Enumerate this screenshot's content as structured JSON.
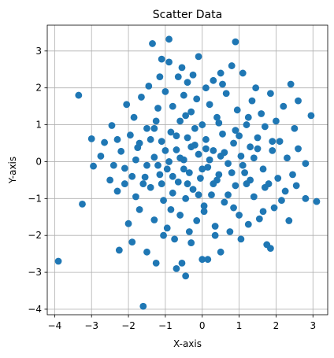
{
  "chart_data": {
    "type": "scatter",
    "title": "Scatter Data",
    "xlabel": "X-axis",
    "ylabel": "Y-axis",
    "xlim": [
      -4.2,
      3.4
    ],
    "ylim": [
      -4.15,
      3.7
    ],
    "xticks": [
      -4,
      -3,
      -2,
      -1,
      0,
      1,
      2,
      3
    ],
    "yticks": [
      -4,
      -3,
      -2,
      -1,
      0,
      1,
      2,
      3
    ],
    "grid": true,
    "marker_color": "#1f77b4",
    "points": [
      [
        -3.9,
        -2.7
      ],
      [
        -3.35,
        1.8
      ],
      [
        -3.25,
        -1.15
      ],
      [
        -3.0,
        0.62
      ],
      [
        -2.95,
        -0.12
      ],
      [
        -2.75,
        0.15
      ],
      [
        -2.65,
        0.52
      ],
      [
        -2.5,
        -0.5
      ],
      [
        -2.45,
        0.98
      ],
      [
        -2.3,
        -0.8
      ],
      [
        -2.25,
        -2.4
      ],
      [
        -2.2,
        0.28
      ],
      [
        -2.1,
        -0.18
      ],
      [
        -2.05,
        1.55
      ],
      [
        -2.0,
        -1.68
      ],
      [
        -1.95,
        0.72
      ],
      [
        -1.9,
        -2.18
      ],
      [
        -1.85,
        1.2
      ],
      [
        -1.8,
        -0.95
      ],
      [
        -1.75,
        0.38
      ],
      [
        -1.7,
        -1.3
      ],
      [
        -1.65,
        1.75
      ],
      [
        -1.6,
        -3.92
      ],
      [
        -1.55,
        -0.42
      ],
      [
        -1.5,
        0.9
      ],
      [
        -1.5,
        -2.45
      ],
      [
        -1.45,
        2.05
      ],
      [
        -1.4,
        -0.7
      ],
      [
        -1.35,
        3.2
      ],
      [
        -1.3,
        0.12
      ],
      [
        -1.3,
        -1.58
      ],
      [
        -1.25,
        -2.75
      ],
      [
        -1.2,
        1.45
      ],
      [
        -1.15,
        -0.35
      ],
      [
        -1.1,
        2.78
      ],
      [
        -1.1,
        0.55
      ],
      [
        -1.05,
        -1.05
      ],
      [
        -1.0,
        1.9
      ],
      [
        -0.95,
        -0.2
      ],
      [
        -0.95,
        -1.8
      ],
      [
        -0.9,
        3.32
      ],
      [
        -0.9,
        2.7
      ],
      [
        -0.85,
        0.8
      ],
      [
        -0.8,
        -0.85
      ],
      [
        -0.8,
        1.5
      ],
      [
        -0.75,
        -2.1
      ],
      [
        -0.7,
        0.32
      ],
      [
        -0.7,
        -2.9
      ],
      [
        -0.65,
        2.3
      ],
      [
        -0.65,
        -0.55
      ],
      [
        -0.6,
        1.1
      ],
      [
        -0.6,
        -1.45
      ],
      [
        -0.55,
        -2.75
      ],
      [
        -0.5,
        0.05
      ],
      [
        -0.5,
        1.8
      ],
      [
        -0.45,
        -3.1
      ],
      [
        -0.45,
        -1.0
      ],
      [
        -0.4,
        2.15
      ],
      [
        -0.4,
        0.65
      ],
      [
        -0.35,
        -0.3
      ],
      [
        -0.3,
        1.35
      ],
      [
        -0.3,
        -2.2
      ],
      [
        -0.25,
        2.35
      ],
      [
        -0.25,
        -0.75
      ],
      [
        -0.2,
        0.45
      ],
      [
        -0.15,
        -1.6
      ],
      [
        -0.15,
        1.7
      ],
      [
        -0.1,
        2.85
      ],
      [
        -0.1,
        0.2
      ],
      [
        -0.05,
        -0.45
      ],
      [
        0.0,
        -2.65
      ],
      [
        0.0,
        1.0
      ],
      [
        0.05,
        -1.2
      ],
      [
        0.1,
        2.0
      ],
      [
        0.1,
        0.6
      ],
      [
        0.15,
        -0.15
      ],
      [
        0.15,
        -2.65
      ],
      [
        0.2,
        1.55
      ],
      [
        0.25,
        -0.9
      ],
      [
        0.3,
        2.2
      ],
      [
        0.3,
        0.3
      ],
      [
        0.35,
        -1.75
      ],
      [
        0.4,
        1.2
      ],
      [
        0.45,
        -0.35
      ],
      [
        0.5,
        2.4
      ],
      [
        0.5,
        -2.45
      ],
      [
        0.55,
        0.75
      ],
      [
        0.6,
        -1.1
      ],
      [
        0.65,
        1.85
      ],
      [
        0.7,
        -0.05
      ],
      [
        0.75,
        -1.9
      ],
      [
        0.8,
        2.6
      ],
      [
        0.85,
        0.5
      ],
      [
        0.9,
        3.25
      ],
      [
        0.9,
        -0.65
      ],
      [
        0.95,
        1.4
      ],
      [
        1.0,
        -1.45
      ],
      [
        1.05,
        0.15
      ],
      [
        1.1,
        2.4
      ],
      [
        1.15,
        -0.3
      ],
      [
        1.2,
        1.0
      ],
      [
        1.25,
        -1.7
      ],
      [
        1.3,
        0.4
      ],
      [
        1.35,
        1.65
      ],
      [
        1.4,
        -0.95
      ],
      [
        1.5,
        0.65
      ],
      [
        1.55,
        -1.55
      ],
      [
        1.6,
        1.3
      ],
      [
        1.65,
        -0.2
      ],
      [
        1.7,
        0.95
      ],
      [
        1.75,
        -2.25
      ],
      [
        1.8,
        -0.6
      ],
      [
        1.85,
        1.85
      ],
      [
        1.85,
        -2.35
      ],
      [
        1.9,
        0.3
      ],
      [
        1.95,
        -1.25
      ],
      [
        2.0,
        1.1
      ],
      [
        2.05,
        -0.45
      ],
      [
        2.1,
        0.55
      ],
      [
        2.15,
        -1.05
      ],
      [
        2.2,
        1.5
      ],
      [
        2.25,
        -0.8
      ],
      [
        2.3,
        0.1
      ],
      [
        2.35,
        -1.6
      ],
      [
        2.4,
        2.1
      ],
      [
        2.45,
        -0.35
      ],
      [
        2.5,
        0.9
      ],
      [
        2.55,
        -0.65
      ],
      [
        2.6,
        1.65
      ],
      [
        2.8,
        -1.0
      ],
      [
        2.8,
        -0.05
      ],
      [
        2.95,
        1.25
      ],
      [
        3.1,
        -1.08
      ],
      [
        -1.8,
        0.05
      ],
      [
        -1.6,
        -0.6
      ],
      [
        -1.4,
        0.6
      ],
      [
        -1.2,
        -0.1
      ],
      [
        -1.0,
        0.3
      ],
      [
        -0.8,
        -0.4
      ],
      [
        -0.6,
        0.1
      ],
      [
        -0.4,
        -0.6
      ],
      [
        -0.2,
        0.9
      ],
      [
        0.0,
        -0.2
      ],
      [
        0.2,
        0.05
      ],
      [
        0.4,
        -0.5
      ],
      [
        0.6,
        0.25
      ],
      [
        0.8,
        -0.3
      ],
      [
        1.0,
        0.7
      ],
      [
        1.2,
        -0.6
      ],
      [
        1.4,
        0.1
      ],
      [
        -1.9,
        -0.4
      ],
      [
        -1.7,
        0.5
      ],
      [
        -1.5,
        -0.1
      ],
      [
        -1.3,
        0.9
      ],
      [
        -1.1,
        -0.6
      ],
      [
        -0.9,
        0.0
      ],
      [
        -0.7,
        0.7
      ],
      [
        -0.5,
        -0.2
      ],
      [
        -0.3,
        0.4
      ],
      [
        -0.1,
        -0.9
      ],
      [
        0.1,
        0.35
      ],
      [
        0.3,
        -0.6
      ],
      [
        0.5,
        0.15
      ],
      [
        0.7,
        -0.9
      ],
      [
        0.9,
        0.85
      ],
      [
        1.1,
        -0.1
      ],
      [
        1.3,
        -0.5
      ],
      [
        1.5,
        0.35
      ],
      [
        1.7,
        -0.7
      ],
      [
        1.9,
        0.55
      ],
      [
        -2.3,
        0.6
      ],
      [
        -2.1,
        -0.6
      ],
      [
        -1.25,
        1.1
      ],
      [
        -0.85,
        -1.3
      ],
      [
        -0.45,
        1.25
      ],
      [
        0.05,
        -1.35
      ],
      [
        0.45,
        1.05
      ],
      [
        0.85,
        -1.25
      ],
      [
        1.25,
        1.2
      ],
      [
        1.65,
        -1.35
      ],
      [
        -1.05,
        -2.0
      ],
      [
        -0.35,
        -1.9
      ],
      [
        0.35,
        -2.0
      ],
      [
        1.05,
        -2.1
      ],
      [
        -1.15,
        2.3
      ],
      [
        -0.55,
        2.55
      ],
      [
        0.55,
        2.1
      ],
      [
        1.45,
        2.0
      ],
      [
        -2.4,
        -0.1
      ],
      [
        2.6,
        0.35
      ]
    ]
  }
}
